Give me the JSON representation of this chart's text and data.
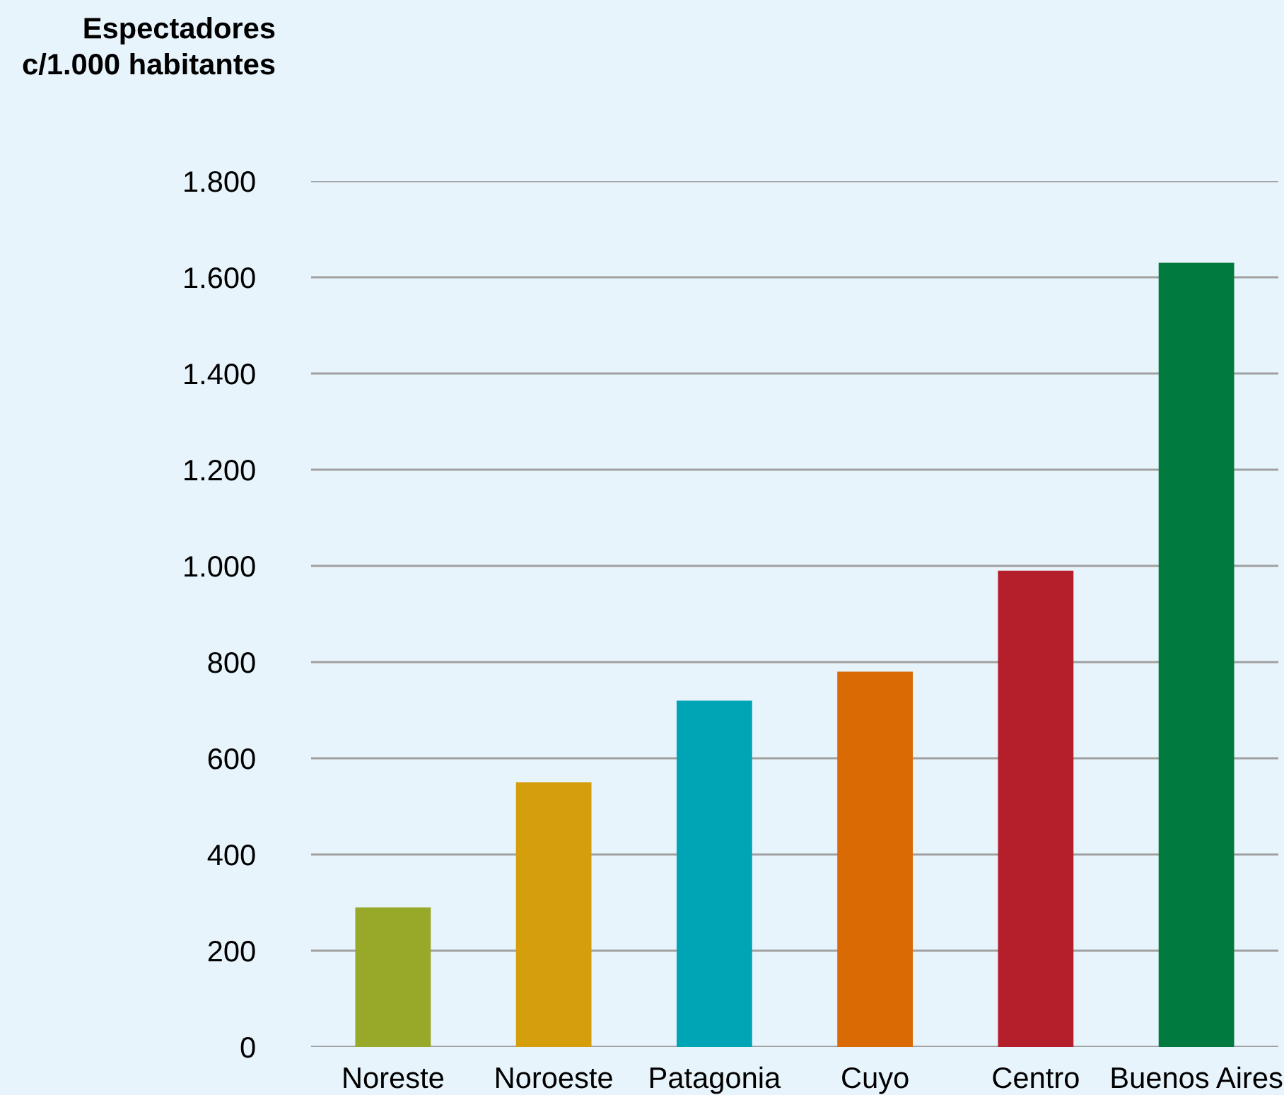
{
  "chart_data": {
    "type": "bar",
    "ylabel": "Espectadores\nc/1.000 habitantes",
    "categories": [
      "Noreste",
      "Noroeste",
      "Patagonia",
      "Cuyo",
      "Centro",
      "Buenos Aires"
    ],
    "values": [
      290,
      550,
      720,
      780,
      990,
      1630
    ],
    "colors": [
      "#98a828",
      "#d49e0c",
      "#00a5b5",
      "#d96a04",
      "#b41f2b",
      "#007a3e"
    ],
    "ylim": [
      0,
      1800
    ],
    "yticks": [
      {
        "value": 0,
        "label": "0"
      },
      {
        "value": 200,
        "label": "200"
      },
      {
        "value": 400,
        "label": "400"
      },
      {
        "value": 600,
        "label": "600"
      },
      {
        "value": 800,
        "label": "800"
      },
      {
        "value": 1000,
        "label": "1.000"
      },
      {
        "value": 1200,
        "label": "1.200"
      },
      {
        "value": 1400,
        "label": "1.400"
      },
      {
        "value": 1600,
        "label": "1.600"
      },
      {
        "value": 1800,
        "label": "1.800"
      }
    ],
    "grid": "y",
    "legend": false
  }
}
